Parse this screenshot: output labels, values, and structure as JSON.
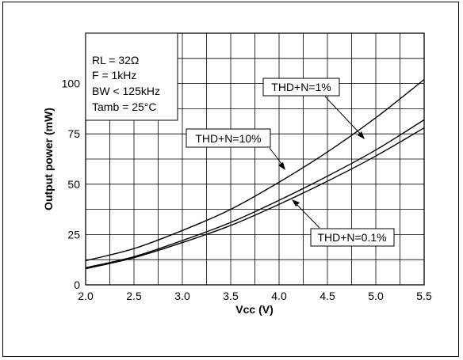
{
  "chart_data": {
    "type": "line",
    "xlabel": "Vcc (V)",
    "ylabel": "Output power (mW)",
    "xlim": [
      2.0,
      5.5
    ],
    "ylim": [
      0,
      125
    ],
    "grid": true,
    "x_ticks": [
      "2.0",
      "2.5",
      "3.0",
      "3.5",
      "4.0",
      "4.5",
      "5.0",
      "5.5"
    ],
    "y_ticks": [
      "0",
      "25",
      "50",
      "75",
      "100"
    ],
    "conditions": [
      "RL = 32Ω",
      "F = 1kHz",
      "BW < 125kHz",
      "Tamb = 25°C"
    ],
    "series": [
      {
        "name": "THD+N=10%",
        "x": [
          2.0,
          2.5,
          3.0,
          3.5,
          4.0,
          4.5,
          5.0,
          5.5
        ],
        "values": [
          12,
          18,
          27,
          37.5,
          51,
          66,
          83,
          102
        ]
      },
      {
        "name": "THD+N=1%",
        "x": [
          2.0,
          2.5,
          3.0,
          3.5,
          4.0,
          4.5,
          5.0,
          5.5
        ],
        "values": [
          8.5,
          14,
          22,
          31,
          42,
          54,
          67,
          82
        ]
      },
      {
        "name": "THD+N=0.1%",
        "x": [
          2.0,
          2.5,
          3.0,
          3.5,
          4.0,
          4.5,
          5.0,
          5.5
        ],
        "values": [
          8,
          13.5,
          21,
          29.5,
          40,
          51.5,
          64,
          78
        ]
      }
    ],
    "annotations": [
      {
        "text": "THD+N=1%",
        "series": "THD+N=1%",
        "arrow_to_x": 5.05
      },
      {
        "text": "THD+N=10%",
        "series": "THD+N=10%",
        "arrow_to_x": 3.6
      },
      {
        "text": "THD+N=0.1%",
        "series": "THD+N=0.1%",
        "arrow_to_x": 4.2
      }
    ]
  }
}
